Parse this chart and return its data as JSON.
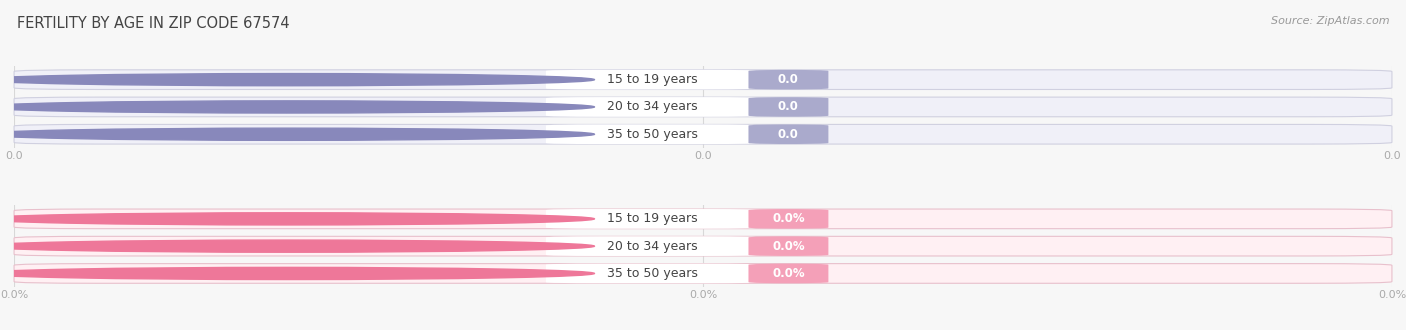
{
  "title": "FERTILITY BY AGE IN ZIP CODE 67574",
  "source_text": "Source: ZipAtlas.com",
  "top_chart": {
    "categories": [
      "15 to 19 years",
      "20 to 34 years",
      "35 to 50 years"
    ],
    "values": [
      0.0,
      0.0,
      0.0
    ],
    "circle_color": "#8888bb",
    "bar_bg_color": "#f0f0f8",
    "bar_border_color": "#d0d0e0",
    "value_pill_color": "#aaaacc",
    "x_tick_labels": [
      "0.0",
      "0.0",
      "0.0"
    ],
    "x_tick_positions": [
      0.0,
      0.5,
      1.0
    ]
  },
  "bottom_chart": {
    "categories": [
      "15 to 19 years",
      "20 to 34 years",
      "35 to 50 years"
    ],
    "values": [
      0.0,
      0.0,
      0.0
    ],
    "circle_color": "#ee7799",
    "bar_bg_color": "#fff0f3",
    "bar_border_color": "#e8c0cc",
    "value_pill_color": "#f4a0b8",
    "x_tick_labels": [
      "0.0%",
      "0.0%",
      "0.0%"
    ],
    "x_tick_positions": [
      0.0,
      0.5,
      1.0
    ]
  },
  "bg_color": "#f7f7f7",
  "grid_color": "#d8d8d8",
  "text_color": "#444444",
  "tick_color": "#aaaaaa",
  "title_fontsize": 10.5,
  "source_fontsize": 8,
  "label_fontsize": 9,
  "value_fontsize": 8.5,
  "tick_fontsize": 8
}
